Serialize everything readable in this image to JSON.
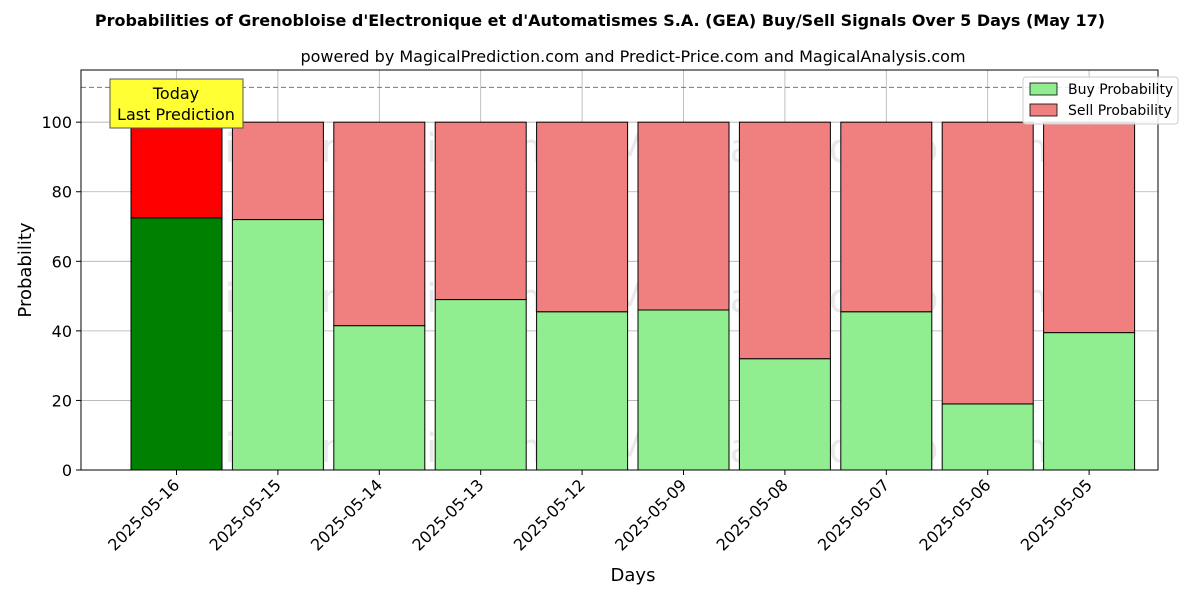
{
  "chart_data": {
    "type": "bar",
    "stacked": true,
    "title": "Probabilities of Grenobloise d'Electronique et d'Automatismes S.A. (GEA) Buy/Sell Signals Over 5 Days (May 17)",
    "subtitle": "powered by MagicalPrediction.com and Predict-Price.com and MagicalAnalysis.com",
    "xlabel": "Days",
    "ylabel": "Probability",
    "ylim": [
      0,
      115
    ],
    "yticks": [
      0,
      20,
      40,
      60,
      80,
      100
    ],
    "reference_line": 110,
    "grid": true,
    "legend_position": "top-right",
    "categories": [
      "2025-05-16",
      "2025-05-15",
      "2025-05-14",
      "2025-05-13",
      "2025-05-12",
      "2025-05-09",
      "2025-05-08",
      "2025-05-07",
      "2025-05-06",
      "2025-05-05"
    ],
    "series": [
      {
        "name": "Buy Probability",
        "color": "#90ee90",
        "highlight_color": "#008000",
        "values": [
          72.5,
          72.0,
          41.5,
          49.0,
          45.5,
          46.0,
          32.0,
          45.5,
          19.0,
          39.5
        ]
      },
      {
        "name": "Sell Probability",
        "color": "#f08080",
        "highlight_color": "#ff0000",
        "values": [
          27.5,
          28.0,
          58.5,
          51.0,
          54.5,
          54.0,
          68.0,
          54.5,
          81.0,
          60.5
        ]
      }
    ],
    "annotation": {
      "lines": [
        "Today",
        "Last Prediction"
      ],
      "background": "#ffff33"
    },
    "watermarks": [
      "MagicalAnalysis.com",
      "MagicalPrediction.com"
    ]
  }
}
